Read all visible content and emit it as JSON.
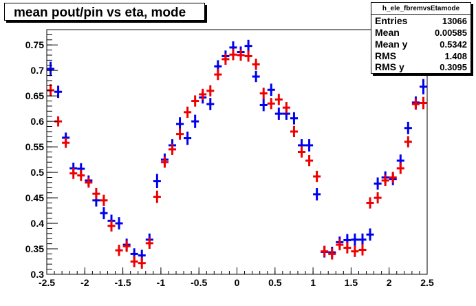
{
  "title": "mean pout/pin vs eta, mode",
  "stats": {
    "name": "h_ele_fbremvsEtamode",
    "rows": [
      {
        "label": "Entries",
        "value": "13066"
      },
      {
        "label": "Mean",
        "value": "0.00585"
      },
      {
        "label": "Mean y",
        "value": "0.5342"
      },
      {
        "label": "RMS",
        "value": "1.408"
      },
      {
        "label": "RMS y",
        "value": "0.3095"
      }
    ]
  },
  "chart_data": {
    "type": "scatter",
    "title": "mean pout/pin vs eta, mode",
    "xlabel": "",
    "ylabel": "",
    "xlim": [
      -2.5,
      2.5
    ],
    "ylim": [
      0.3,
      0.78
    ],
    "x_ticks": [
      -2.5,
      -2,
      -1.5,
      -1,
      -0.5,
      0,
      0.5,
      1,
      1.5,
      2,
      2.5
    ],
    "x_tick_labels": [
      "-2.5",
      "-2",
      "-1.5",
      "-1",
      "-0.5",
      "0",
      "0.5",
      "1",
      "1.5",
      "2",
      "2.5"
    ],
    "y_ticks": [
      0.3,
      0.35,
      0.4,
      0.45,
      0.5,
      0.55,
      0.6,
      0.65,
      0.7,
      0.75
    ],
    "y_tick_labels": [
      "0.3",
      "0.35",
      "0.4",
      "0.45",
      "0.5",
      "0.55",
      "0.6",
      "0.65",
      "0.7",
      "0.75"
    ],
    "bin_width": 0.1,
    "x": [
      -2.45,
      -2.35,
      -2.25,
      -2.15,
      -2.05,
      -1.95,
      -1.85,
      -1.75,
      -1.65,
      -1.55,
      -1.45,
      -1.35,
      -1.25,
      -1.15,
      -1.05,
      -0.95,
      -0.85,
      -0.75,
      -0.65,
      -0.55,
      -0.45,
      -0.35,
      -0.25,
      -0.15,
      -0.05,
      0.05,
      0.15,
      0.25,
      0.35,
      0.45,
      0.55,
      0.65,
      0.75,
      0.85,
      0.95,
      1.05,
      1.15,
      1.25,
      1.35,
      1.45,
      1.55,
      1.65,
      1.75,
      1.85,
      1.95,
      2.05,
      2.15,
      2.25,
      2.35,
      2.45
    ],
    "series": [
      {
        "color": "#0000ee",
        "values": [
          0.703,
          0.658,
          0.568,
          0.508,
          0.507,
          0.484,
          0.445,
          0.42,
          0.405,
          0.4,
          0.358,
          0.34,
          0.337,
          0.368,
          0.483,
          0.525,
          0.553,
          0.595,
          0.567,
          0.6,
          0.647,
          0.634,
          0.708,
          0.728,
          0.745,
          0.736,
          0.748,
          0.688,
          0.632,
          0.662,
          0.615,
          0.615,
          0.606,
          0.553,
          0.553,
          0.457,
          0.344,
          0.343,
          0.363,
          0.367,
          0.368,
          0.368,
          0.378,
          0.478,
          0.49,
          0.487,
          0.523,
          0.587,
          0.637,
          0.668
        ],
        "errors": [
          0.014,
          0.012,
          0.01,
          0.011,
          0.011,
          0.01,
          0.012,
          0.012,
          0.012,
          0.012,
          0.012,
          0.011,
          0.011,
          0.012,
          0.014,
          0.012,
          0.012,
          0.013,
          0.013,
          0.013,
          0.012,
          0.012,
          0.012,
          0.011,
          0.012,
          0.011,
          0.012,
          0.011,
          0.012,
          0.012,
          0.012,
          0.012,
          0.012,
          0.012,
          0.012,
          0.012,
          0.011,
          0.011,
          0.011,
          0.012,
          0.012,
          0.012,
          0.012,
          0.012,
          0.012,
          0.012,
          0.012,
          0.012,
          0.012,
          0.015
        ]
      },
      {
        "color": "#ee0000",
        "values": [
          0.661,
          0.6,
          0.558,
          0.498,
          0.494,
          0.48,
          0.458,
          0.445,
          0.395,
          0.347,
          0.355,
          0.325,
          0.322,
          0.361,
          0.452,
          0.52,
          0.545,
          0.575,
          0.618,
          0.64,
          0.653,
          0.66,
          0.692,
          0.722,
          0.731,
          0.73,
          0.728,
          0.712,
          0.655,
          0.635,
          0.643,
          0.627,
          0.58,
          0.54,
          0.523,
          0.492,
          0.345,
          0.34,
          0.358,
          0.352,
          0.345,
          0.348,
          0.44,
          0.45,
          0.484,
          0.49,
          0.508,
          0.56,
          0.634,
          0.636
        ],
        "errors": [
          0.012,
          0.01,
          0.01,
          0.011,
          0.011,
          0.01,
          0.011,
          0.011,
          0.011,
          0.011,
          0.011,
          0.011,
          0.011,
          0.011,
          0.012,
          0.011,
          0.011,
          0.011,
          0.011,
          0.011,
          0.011,
          0.011,
          0.011,
          0.011,
          0.011,
          0.011,
          0.011,
          0.011,
          0.011,
          0.011,
          0.011,
          0.011,
          0.011,
          0.011,
          0.011,
          0.011,
          0.011,
          0.011,
          0.011,
          0.011,
          0.011,
          0.011,
          0.011,
          0.011,
          0.011,
          0.011,
          0.011,
          0.011,
          0.011,
          0.012
        ]
      }
    ]
  }
}
